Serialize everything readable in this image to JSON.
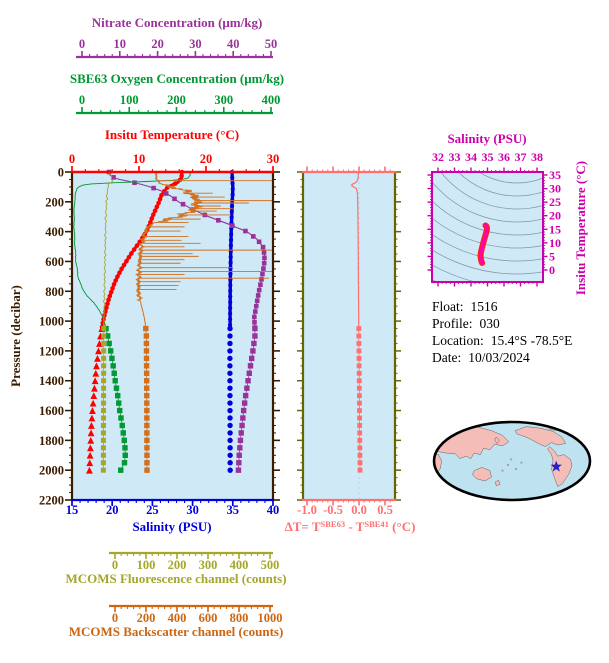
{
  "titles": {
    "nitrate": "Nitrate Concentration (μm/kg)",
    "oxygen": "SBE63 Oxygen Concentration (μm/kg)",
    "temperature": "Insitu Temperature (°C)",
    "pressure": "Pressure (decibar)",
    "salinity": "Salinity (PSU)",
    "fluorescence": "MCOMS Fluorescence channel (counts)",
    "backscatter": "MCOMS Backscatter channel (counts)",
    "ts_salinity": "Salinity (PSU)",
    "ts_temperature": "Insitu Temperature (°C)"
  },
  "dt_label": {
    "p1": "ΔT= T",
    "s1": "SBE63",
    "p2": " - T",
    "s2": "SBE41",
    "p3": " (°C)"
  },
  "info": {
    "lines": [
      {
        "label": "Float:",
        "value": "1516"
      },
      {
        "label": "Profile:",
        "value": "030"
      },
      {
        "label": "Location:",
        "value": "15.4°S  -78.5°E"
      },
      {
        "label": "Date:",
        "value": "10/03/2024"
      }
    ]
  },
  "colors": {
    "nitrate": "#993399",
    "oxygen": "#009933",
    "temperature": "#ff0000",
    "pressure": "#3a1d00",
    "salinity": "#0000dd",
    "fluorescence": "#a6a62a",
    "backscatter": "#cc6611",
    "backscatter_curve": "#d2701e",
    "delta_t": "#ff7070",
    "ts": "#cc00aa",
    "ts_curve": "#ff00bb",
    "ts_curve_edge": "#ff2020",
    "plot_bg": "#cfe9f6",
    "contour": "#8494a8",
    "dt_side_border": "#666600",
    "map_ocean": "#bfe2f0",
    "map_land": "#f5bdb8",
    "map_outline": "#000000",
    "star": "#2020cc"
  },
  "chart_data": {
    "type": "line",
    "description": "Argo-style float profile plots versus pressure, plus SBE63-SBE41 temperature difference panel, T-S diagram with density contours, and float location map",
    "axes": {
      "pressure": {
        "min": 0,
        "max": 2200,
        "ticks": [
          0,
          200,
          400,
          600,
          800,
          1000,
          1200,
          1400,
          1600,
          1800,
          2000,
          2200
        ]
      },
      "nitrate": {
        "min": 0,
        "max": 50,
        "ticks": [
          0,
          10,
          20,
          30,
          40,
          50
        ]
      },
      "oxygen": {
        "min": 0,
        "max": 400,
        "ticks": [
          0,
          100,
          200,
          300,
          400
        ]
      },
      "temperature": {
        "min": 0,
        "max": 30,
        "ticks": [
          0,
          10,
          20,
          30
        ]
      },
      "salinity": {
        "min": 15,
        "max": 40,
        "ticks": [
          15,
          20,
          25,
          30,
          35,
          40
        ]
      },
      "fluorescence": {
        "min": 0,
        "max": 500,
        "ticks": [
          0,
          100,
          200,
          300,
          400,
          500
        ]
      },
      "backscatter": {
        "min": 0,
        "max": 1000,
        "ticks": [
          0,
          200,
          400,
          600,
          800,
          1000
        ]
      }
    },
    "profiles": [
      {
        "id": "temperature",
        "name": "Insitu Temperature (°C)",
        "scale": [
          0,
          30
        ],
        "points": [
          [
            0,
            16.4
          ],
          [
            40,
            16.35
          ],
          [
            70,
            15.8
          ],
          [
            100,
            14.3
          ],
          [
            150,
            13.4
          ],
          [
            200,
            13.0
          ],
          [
            250,
            12.5
          ],
          [
            300,
            12.0
          ],
          [
            350,
            11.6
          ],
          [
            400,
            11.1
          ],
          [
            450,
            10.4
          ],
          [
            500,
            9.6
          ],
          [
            550,
            8.8
          ],
          [
            600,
            8.1
          ],
          [
            650,
            7.4
          ],
          [
            700,
            6.8
          ],
          [
            750,
            6.3
          ],
          [
            800,
            5.9
          ],
          [
            850,
            5.5
          ],
          [
            900,
            5.2
          ],
          [
            950,
            4.9
          ],
          [
            1000,
            4.65
          ],
          [
            1050,
            4.45
          ],
          [
            1100,
            4.25
          ],
          [
            1200,
            3.95
          ],
          [
            1300,
            3.65
          ],
          [
            1400,
            3.45
          ],
          [
            1500,
            3.25
          ],
          [
            1600,
            3.05
          ],
          [
            1700,
            2.9
          ],
          [
            1800,
            2.8
          ],
          [
            1900,
            2.7
          ],
          [
            2000,
            2.6
          ]
        ]
      },
      {
        "id": "salinity",
        "name": "Salinity (PSU)",
        "scale": [
          15,
          40
        ],
        "points": [
          [
            0,
            34.9
          ],
          [
            60,
            34.95
          ],
          [
            100,
            35.0
          ],
          [
            150,
            34.98
          ],
          [
            200,
            34.92
          ],
          [
            300,
            34.86
          ],
          [
            400,
            34.8
          ],
          [
            500,
            34.76
          ],
          [
            600,
            34.73
          ],
          [
            700,
            34.7
          ],
          [
            800,
            34.68
          ],
          [
            900,
            34.67
          ],
          [
            1000,
            34.66
          ],
          [
            1100,
            34.65
          ],
          [
            1300,
            34.64
          ],
          [
            1500,
            34.65
          ],
          [
            1700,
            34.66
          ],
          [
            2000,
            34.67
          ]
        ]
      },
      {
        "id": "nitrate",
        "name": "Nitrate Concentration (μm/kg)",
        "scale": [
          0,
          50
        ],
        "points": [
          [
            0,
            9.2
          ],
          [
            25,
            9.5
          ],
          [
            45,
            11
          ],
          [
            65,
            14.5
          ],
          [
            85,
            17.5
          ],
          [
            105,
            20
          ],
          [
            130,
            22.5
          ],
          [
            160,
            24.5
          ],
          [
            200,
            26.5
          ],
          [
            250,
            30
          ],
          [
            300,
            34
          ],
          [
            350,
            39
          ],
          [
            400,
            43.5
          ],
          [
            450,
            46
          ],
          [
            500,
            47.5
          ],
          [
            560,
            47.9
          ],
          [
            620,
            47.8
          ],
          [
            680,
            47.4
          ],
          [
            740,
            47
          ],
          [
            800,
            46.5
          ],
          [
            860,
            46.1
          ],
          [
            920,
            45.7
          ],
          [
            980,
            45.3
          ],
          [
            1040,
            45.5
          ],
          [
            1100,
            45.5
          ],
          [
            1200,
            45.0
          ],
          [
            1300,
            44.4
          ],
          [
            1400,
            43.8
          ],
          [
            1500,
            43.2
          ],
          [
            1600,
            42.7
          ],
          [
            1700,
            42.3
          ],
          [
            1800,
            41.9
          ],
          [
            1900,
            41.6
          ],
          [
            2000,
            41.4
          ]
        ]
      },
      {
        "id": "oxygen",
        "name": "SBE63 Oxygen Concentration (μm/kg)",
        "scale": [
          0,
          400
        ],
        "points": [
          [
            0,
            236
          ],
          [
            25,
            236
          ],
          [
            45,
            230
          ],
          [
            58,
            195
          ],
          [
            68,
            115
          ],
          [
            78,
            42
          ],
          [
            90,
            18
          ],
          [
            110,
            10
          ],
          [
            150,
            7
          ],
          [
            200,
            5
          ],
          [
            300,
            4
          ],
          [
            400,
            4.5
          ],
          [
            500,
            6
          ],
          [
            600,
            8
          ],
          [
            700,
            12
          ],
          [
            780,
            20
          ],
          [
            830,
            30
          ],
          [
            880,
            44
          ],
          [
            930,
            55
          ],
          [
            980,
            62
          ],
          [
            1040,
            67
          ],
          [
            1100,
            71
          ],
          [
            1200,
            77
          ],
          [
            1300,
            82
          ],
          [
            1400,
            86
          ],
          [
            1500,
            91
          ],
          [
            1600,
            95
          ],
          [
            1700,
            100
          ],
          [
            1800,
            104
          ],
          [
            1870,
            106
          ],
          [
            1930,
            106
          ],
          [
            1970,
            103
          ],
          [
            2000,
            97
          ]
        ]
      },
      {
        "id": "fluorescence",
        "name": "MCOMS Fluorescence channel (counts)",
        "scale": [
          0,
          500
        ],
        "points": [
          [
            0,
            92
          ],
          [
            30,
            98
          ],
          [
            55,
            101
          ],
          [
            80,
            92
          ],
          [
            120,
            88
          ],
          [
            200,
            86
          ],
          [
            300,
            84
          ],
          [
            450,
            83
          ],
          [
            600,
            82
          ],
          [
            750,
            81
          ],
          [
            900,
            80
          ],
          [
            1050,
            79
          ],
          [
            2000,
            78
          ]
        ]
      },
      {
        "id": "backscatter",
        "name": "MCOMS Backscatter channel (counts)",
        "scale": [
          0,
          1000
        ],
        "points": [
          [
            0,
            420
          ],
          [
            40,
            418
          ],
          [
            70,
            432
          ],
          [
            95,
            470
          ],
          [
            115,
            545
          ],
          [
            150,
            600
          ],
          [
            200,
            625
          ],
          [
            250,
            610
          ],
          [
            280,
            570
          ],
          [
            305,
            515
          ],
          [
            325,
            455
          ],
          [
            345,
            405
          ],
          [
            370,
            375
          ],
          [
            420,
            360
          ],
          [
            480,
            348
          ],
          [
            550,
            340
          ],
          [
            620,
            336
          ],
          [
            700,
            332
          ],
          [
            780,
            330
          ],
          [
            830,
            333
          ],
          [
            880,
            342
          ],
          [
            930,
            352
          ],
          [
            980,
            360
          ],
          [
            1030,
            366
          ],
          [
            1100,
            370
          ],
          [
            1500,
            372
          ],
          [
            2000,
            373
          ]
        ],
        "spikes": [
          [
            58,
            1040
          ],
          [
            142,
            700
          ],
          [
            168,
            760
          ],
          [
            192,
            1040
          ],
          [
            208,
            880
          ],
          [
            228,
            740
          ],
          [
            246,
            800
          ],
          [
            262,
            720
          ],
          [
            288,
            790
          ],
          [
            316,
            640
          ],
          [
            338,
            580
          ],
          [
            368,
            560
          ],
          [
            396,
            540
          ],
          [
            432,
            580
          ],
          [
            458,
            545
          ],
          [
            478,
            640
          ],
          [
            502,
            560
          ],
          [
            524,
            1000
          ],
          [
            548,
            600
          ],
          [
            566,
            630
          ],
          [
            588,
            560
          ],
          [
            612,
            540
          ],
          [
            642,
            800
          ],
          [
            668,
            1000
          ],
          [
            688,
            560
          ],
          [
            712,
            980
          ],
          [
            736,
            540
          ],
          [
            762,
            530
          ],
          [
            788,
            520
          ]
        ]
      }
    ],
    "delta_t": {
      "name": "ΔT = T_SBE63 - T_SBE41 (°C)",
      "scale": [
        -1.0,
        0.5
      ],
      "tick_values": [
        -1.0,
        -0.5,
        0.0,
        0.5
      ],
      "tick_labels": [
        "-1.0",
        "-0.5",
        "0.0",
        "0.5"
      ],
      "points": [
        [
          0,
          -0.01
        ],
        [
          40,
          -0.02
        ],
        [
          60,
          -0.03
        ],
        [
          75,
          -0.08
        ],
        [
          85,
          -0.15
        ],
        [
          95,
          -0.13
        ],
        [
          110,
          -0.05
        ],
        [
          140,
          -0.03
        ],
        [
          200,
          -0.025
        ],
        [
          300,
          -0.02
        ],
        [
          500,
          -0.015
        ],
        [
          800,
          -0.01
        ],
        [
          1050,
          -0.005
        ],
        [
          1400,
          0.005
        ],
        [
          2000,
          0.02
        ]
      ]
    },
    "ts_diagram": {
      "salinity_ticks": [
        32,
        33,
        34,
        35,
        36,
        37,
        38
      ],
      "temperature_ticks": [
        0,
        5,
        10,
        15,
        20,
        25,
        30,
        35
      ],
      "curve_s_t": [
        [
          34.67,
          2.6
        ],
        [
          34.63,
          3.2
        ],
        [
          34.6,
          4.0
        ],
        [
          34.58,
          5.0
        ],
        [
          34.585,
          6.0
        ],
        [
          34.62,
          7.0
        ],
        [
          34.66,
          8.0
        ],
        [
          34.72,
          9.5
        ],
        [
          34.79,
          11.0
        ],
        [
          34.86,
          12.5
        ],
        [
          34.91,
          13.5
        ],
        [
          34.95,
          14.5
        ],
        [
          34.97,
          15.4
        ],
        [
          34.94,
          16.1
        ],
        [
          34.88,
          16.4
        ]
      ]
    },
    "map": {
      "star_location": {
        "lat_label": "15.4°S",
        "lon_label": "-78.5°E"
      }
    }
  }
}
